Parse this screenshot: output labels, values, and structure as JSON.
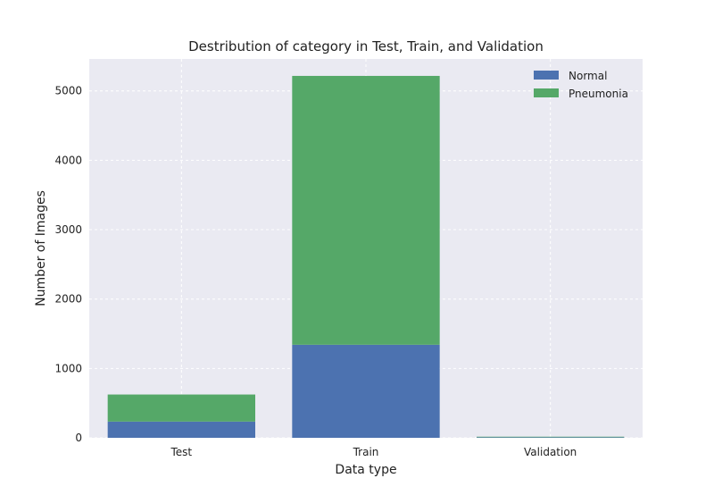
{
  "chart_data": {
    "type": "bar",
    "stacked": true,
    "title": "Destribution of category in Test, Train, and Validation",
    "xlabel": "Data type",
    "ylabel": "Number of Images",
    "categories": [
      "Test",
      "Train",
      "Validation"
    ],
    "series": [
      {
        "name": "Normal",
        "values": [
          234,
          1341,
          8
        ],
        "color": "#4c72b0"
      },
      {
        "name": "Pneumonia",
        "values": [
          390,
          3875,
          8
        ],
        "color": "#55a868"
      }
    ],
    "ylim": [
      0,
      5460
    ],
    "yticks": [
      0,
      1000,
      2000,
      3000,
      4000,
      5000
    ],
    "grid": true,
    "legend_position": "top-right",
    "background_color": "#eaeaf2",
    "grid_color": "#ffffff"
  }
}
